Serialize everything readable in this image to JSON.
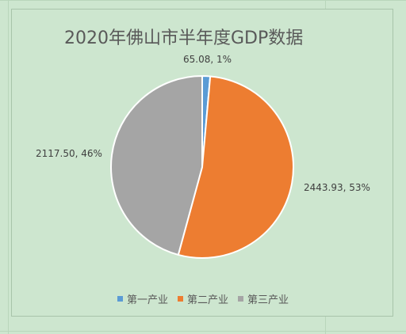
{
  "chart_data": {
    "type": "pie",
    "title": "2020年佛山市半年度GDP数据",
    "categories": [
      "第一产业",
      "第二产业",
      "第三产业"
    ],
    "values": [
      65.08,
      2443.93,
      2117.5
    ],
    "percent_labels": [
      "1%",
      "53%",
      "46%"
    ],
    "data_labels": [
      "65.08, 1%",
      "2443.93, 53%",
      "2117.50, 46%"
    ],
    "colors": [
      "#5b9bd5",
      "#ed7d31",
      "#a5a5a5"
    ],
    "legend_position": "bottom"
  }
}
